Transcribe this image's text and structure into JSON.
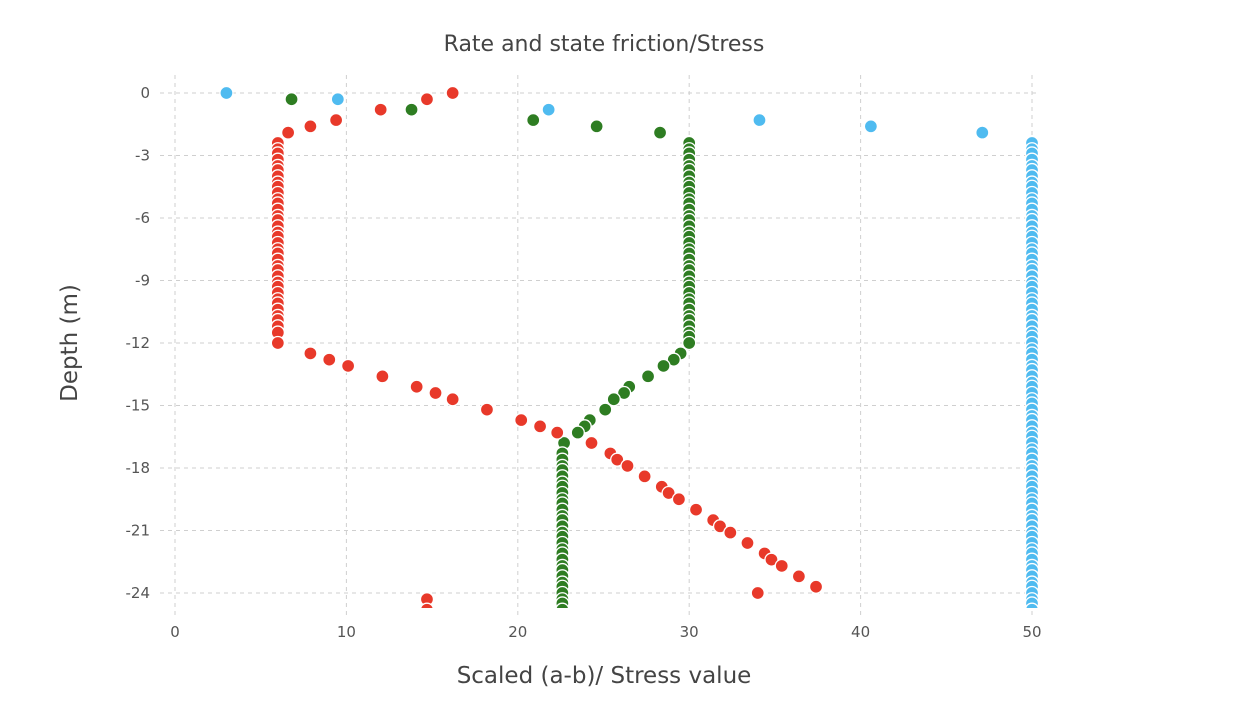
{
  "chart_data": {
    "type": "scatter",
    "title": "Rate and state friction/Stress",
    "xlabel": "Scaled (a-b)/ Stress value",
    "ylabel": "Depth (m)",
    "xlim": [
      -1,
      51
    ],
    "ylim": [
      -24.8,
      0.8
    ],
    "xticks": [
      0,
      10,
      20,
      30,
      40,
      50
    ],
    "yticks": [
      0,
      -3,
      -6,
      -9,
      -12,
      -15,
      -18,
      -21,
      -24
    ],
    "grid": true,
    "legend": "none",
    "series": [
      {
        "name": "blue",
        "color": "#4fbbf0",
        "points": [
          [
            3,
            0
          ],
          [
            9.5,
            -0.3
          ],
          [
            21.8,
            -0.8
          ],
          [
            34.1,
            -1.3
          ],
          [
            40.6,
            -1.6
          ],
          [
            47.1,
            -1.9
          ],
          [
            50,
            -2.4
          ],
          [
            50,
            -2.7
          ],
          [
            50,
            -2.9
          ],
          [
            50,
            -3.2
          ],
          [
            50,
            -3.5
          ],
          [
            50,
            -3.7
          ],
          [
            50,
            -4.0
          ],
          [
            50,
            -4.3
          ],
          [
            50,
            -4.5
          ],
          [
            50,
            -4.8
          ],
          [
            50,
            -5.1
          ],
          [
            50,
            -5.3
          ],
          [
            50,
            -5.6
          ],
          [
            50,
            -5.9
          ],
          [
            50,
            -6.1
          ],
          [
            50,
            -6.4
          ],
          [
            50,
            -6.7
          ],
          [
            50,
            -6.9
          ],
          [
            50,
            -7.2
          ],
          [
            50,
            -7.5
          ],
          [
            50,
            -7.7
          ],
          [
            50,
            -8.0
          ],
          [
            50,
            -8.3
          ],
          [
            50,
            -8.5
          ],
          [
            50,
            -8.8
          ],
          [
            50,
            -9.1
          ],
          [
            50,
            -9.3
          ],
          [
            50,
            -9.6
          ],
          [
            50,
            -9.9
          ],
          [
            50,
            -10.1
          ],
          [
            50,
            -10.4
          ],
          [
            50,
            -10.7
          ],
          [
            50,
            -10.9
          ],
          [
            50,
            -11.2
          ],
          [
            50,
            -11.5
          ],
          [
            50,
            -11.7
          ],
          [
            50,
            -12.0
          ],
          [
            50,
            -12.3
          ],
          [
            50,
            -12.5
          ],
          [
            50,
            -12.8
          ],
          [
            50,
            -13.1
          ],
          [
            50,
            -13.3
          ],
          [
            50,
            -13.6
          ],
          [
            50,
            -13.9
          ],
          [
            50,
            -14.1
          ],
          [
            50,
            -14.4
          ],
          [
            50,
            -14.7
          ],
          [
            50,
            -14.9
          ],
          [
            50,
            -15.2
          ],
          [
            50,
            -15.5
          ],
          [
            50,
            -15.7
          ],
          [
            50,
            -16.0
          ],
          [
            50,
            -16.3
          ],
          [
            50,
            -16.5
          ],
          [
            50,
            -16.8
          ],
          [
            50,
            -17.1
          ],
          [
            50,
            -17.3
          ],
          [
            50,
            -17.6
          ],
          [
            50,
            -17.9
          ],
          [
            50,
            -18.1
          ],
          [
            50,
            -18.4
          ],
          [
            50,
            -18.7
          ],
          [
            50,
            -18.9
          ],
          [
            50,
            -19.2
          ],
          [
            50,
            -19.5
          ],
          [
            50,
            -19.7
          ],
          [
            50,
            -20.0
          ],
          [
            50,
            -20.3
          ],
          [
            50,
            -20.5
          ],
          [
            50,
            -20.8
          ],
          [
            50,
            -21.1
          ],
          [
            50,
            -21.3
          ],
          [
            50,
            -21.6
          ],
          [
            50,
            -21.9
          ],
          [
            50,
            -22.1
          ],
          [
            50,
            -22.4
          ],
          [
            50,
            -22.7
          ],
          [
            50,
            -22.9
          ],
          [
            50,
            -23.2
          ],
          [
            50,
            -23.5
          ],
          [
            50,
            -23.7
          ],
          [
            50,
            -24.0
          ],
          [
            50,
            -24.3
          ],
          [
            50,
            -24.5
          ],
          [
            50,
            -24.8
          ]
        ]
      },
      {
        "name": "green",
        "color": "#2e7d22",
        "points": [
          [
            6.8,
            -0.3
          ],
          [
            13.8,
            -0.8
          ],
          [
            20.9,
            -1.3
          ],
          [
            24.6,
            -1.6
          ],
          [
            28.3,
            -1.9
          ],
          [
            30,
            -2.4
          ],
          [
            30,
            -2.7
          ],
          [
            30,
            -2.9
          ],
          [
            30,
            -3.2
          ],
          [
            30,
            -3.5
          ],
          [
            30,
            -3.7
          ],
          [
            30,
            -4.0
          ],
          [
            30,
            -4.3
          ],
          [
            30,
            -4.5
          ],
          [
            30,
            -4.8
          ],
          [
            30,
            -5.1
          ],
          [
            30,
            -5.3
          ],
          [
            30,
            -5.6
          ],
          [
            30,
            -5.9
          ],
          [
            30,
            -6.1
          ],
          [
            30,
            -6.4
          ],
          [
            30,
            -6.7
          ],
          [
            30,
            -6.9
          ],
          [
            30,
            -7.2
          ],
          [
            30,
            -7.5
          ],
          [
            30,
            -7.7
          ],
          [
            30,
            -8.0
          ],
          [
            30,
            -8.3
          ],
          [
            30,
            -8.5
          ],
          [
            30,
            -8.8
          ],
          [
            30,
            -9.1
          ],
          [
            30,
            -9.3
          ],
          [
            30,
            -9.6
          ],
          [
            30,
            -9.9
          ],
          [
            30,
            -10.1
          ],
          [
            30,
            -10.4
          ],
          [
            30,
            -10.7
          ],
          [
            30,
            -10.9
          ],
          [
            30,
            -11.2
          ],
          [
            30,
            -11.5
          ],
          [
            30,
            -11.7
          ],
          [
            30,
            -12.0
          ],
          [
            29.5,
            -12.5
          ],
          [
            29.1,
            -12.8
          ],
          [
            28.5,
            -13.1
          ],
          [
            27.6,
            -13.6
          ],
          [
            26.5,
            -14.1
          ],
          [
            26.2,
            -14.4
          ],
          [
            25.6,
            -14.7
          ],
          [
            25.1,
            -15.2
          ],
          [
            24.2,
            -15.7
          ],
          [
            23.9,
            -16.0
          ],
          [
            23.5,
            -16.3
          ],
          [
            22.7,
            -16.8
          ],
          [
            22.6,
            -17.3
          ],
          [
            22.6,
            -17.6
          ],
          [
            22.6,
            -17.9
          ],
          [
            22.6,
            -18.1
          ],
          [
            22.6,
            -18.4
          ],
          [
            22.6,
            -18.7
          ],
          [
            22.6,
            -18.9
          ],
          [
            22.6,
            -19.2
          ],
          [
            22.6,
            -19.5
          ],
          [
            22.6,
            -19.7
          ],
          [
            22.6,
            -20.0
          ],
          [
            22.6,
            -20.3
          ],
          [
            22.6,
            -20.5
          ],
          [
            22.6,
            -20.8
          ],
          [
            22.6,
            -21.1
          ],
          [
            22.6,
            -21.3
          ],
          [
            22.6,
            -21.6
          ],
          [
            22.6,
            -21.9
          ],
          [
            22.6,
            -22.1
          ],
          [
            22.6,
            -22.4
          ],
          [
            22.6,
            -22.7
          ],
          [
            22.6,
            -22.9
          ],
          [
            22.6,
            -23.2
          ],
          [
            22.6,
            -23.5
          ],
          [
            22.6,
            -23.7
          ],
          [
            22.6,
            -24.0
          ],
          [
            22.6,
            -24.3
          ],
          [
            22.6,
            -24.5
          ],
          [
            22.6,
            -24.8
          ]
        ]
      },
      {
        "name": "red",
        "color": "#e8392a",
        "points": [
          [
            16.2,
            0
          ],
          [
            14.7,
            -0.3
          ],
          [
            12.0,
            -0.8
          ],
          [
            9.4,
            -1.3
          ],
          [
            7.9,
            -1.6
          ],
          [
            6.6,
            -1.9
          ],
          [
            6,
            -2.4
          ],
          [
            6,
            -2.7
          ],
          [
            6,
            -2.9
          ],
          [
            6,
            -3.2
          ],
          [
            6,
            -3.5
          ],
          [
            6,
            -3.7
          ],
          [
            6,
            -4.0
          ],
          [
            6,
            -4.3
          ],
          [
            6,
            -4.5
          ],
          [
            6,
            -4.8
          ],
          [
            6,
            -5.1
          ],
          [
            6,
            -5.3
          ],
          [
            6,
            -5.6
          ],
          [
            6,
            -5.9
          ],
          [
            6,
            -6.1
          ],
          [
            6,
            -6.4
          ],
          [
            6,
            -6.7
          ],
          [
            6,
            -6.9
          ],
          [
            6,
            -7.2
          ],
          [
            6,
            -7.5
          ],
          [
            6,
            -7.7
          ],
          [
            6,
            -8.0
          ],
          [
            6,
            -8.3
          ],
          [
            6,
            -8.5
          ],
          [
            6,
            -8.8
          ],
          [
            6,
            -9.1
          ],
          [
            6,
            -9.3
          ],
          [
            6,
            -9.6
          ],
          [
            6,
            -9.9
          ],
          [
            6,
            -10.1
          ],
          [
            6,
            -10.4
          ],
          [
            6,
            -10.7
          ],
          [
            6,
            -10.9
          ],
          [
            6,
            -11.2
          ],
          [
            6,
            -11.5
          ],
          [
            6,
            -12.0
          ],
          [
            7.9,
            -12.5
          ],
          [
            9.0,
            -12.8
          ],
          [
            10.1,
            -13.1
          ],
          [
            12.1,
            -13.6
          ],
          [
            14.1,
            -14.1
          ],
          [
            15.2,
            -14.4
          ],
          [
            16.2,
            -14.7
          ],
          [
            18.2,
            -15.2
          ],
          [
            20.2,
            -15.7
          ],
          [
            21.3,
            -16.0
          ],
          [
            22.3,
            -16.3
          ],
          [
            24.3,
            -16.8
          ],
          [
            25.4,
            -17.3
          ],
          [
            25.8,
            -17.6
          ],
          [
            26.4,
            -17.9
          ],
          [
            27.4,
            -18.4
          ],
          [
            28.4,
            -18.9
          ],
          [
            28.8,
            -19.2
          ],
          [
            29.4,
            -19.5
          ],
          [
            30.4,
            -20.0
          ],
          [
            31.4,
            -20.5
          ],
          [
            31.8,
            -20.8
          ],
          [
            32.4,
            -21.1
          ],
          [
            33.4,
            -21.6
          ],
          [
            34.4,
            -22.1
          ],
          [
            34.8,
            -22.4
          ],
          [
            35.4,
            -22.7
          ],
          [
            36.4,
            -23.2
          ],
          [
            37.4,
            -23.7
          ],
          [
            34.0,
            -24.0
          ],
          [
            14.7,
            -24.3
          ],
          [
            14.7,
            -24.8
          ]
        ]
      }
    ]
  }
}
